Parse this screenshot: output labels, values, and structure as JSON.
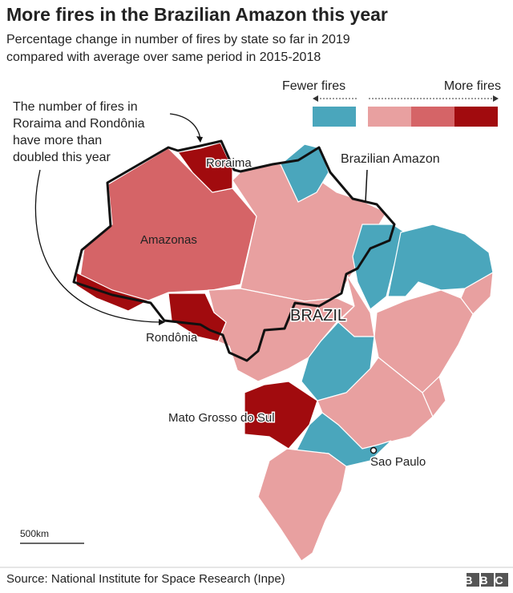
{
  "header": {
    "title": "More fires in the Brazilian Amazon this year",
    "subtitle": [
      "Percentage change in number of fires by state so far in 2019",
      "compared with average over same period in 2015-2018"
    ]
  },
  "legend": {
    "fewer": "Fewer fires",
    "more": "More fires"
  },
  "annotation": [
    "The number of fires in",
    "Roraima and Rondônia",
    "have more than",
    "doubled this year"
  ],
  "map_labels": {
    "roraima": "Roraima",
    "amazonas": "Amazonas",
    "rondonia": "Rondônia",
    "mato_grosso_do_sul": "Mato Grosso do Sul",
    "brazil": "BRAZIL",
    "brazilian_amazon": "Brazilian Amazon",
    "sao_paulo": "Sao Paulo"
  },
  "scale": "500km",
  "footer": {
    "source": "Source: National Institute for Space Research (Inpe)",
    "logo": "BBC"
  }
}
